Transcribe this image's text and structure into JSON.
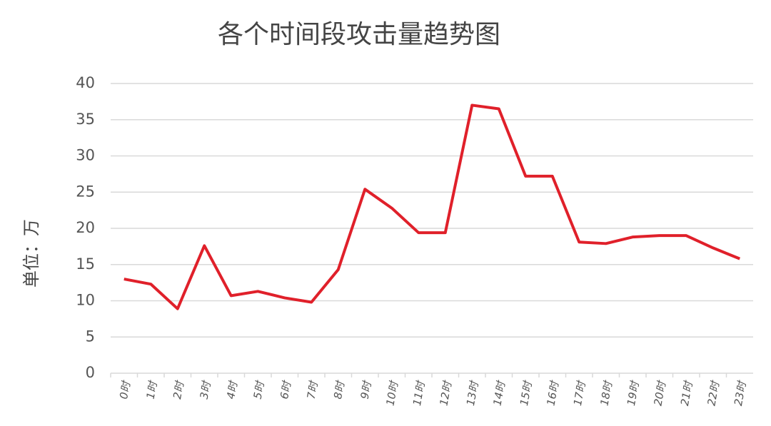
{
  "chart_data": {
    "type": "line",
    "title": "各个时间段攻击量趋势图",
    "y_label": "单位：万",
    "categories": [
      "0时",
      "1时",
      "2时",
      "3时",
      "4时",
      "5时",
      "6时",
      "7时",
      "8时",
      "9时",
      "10时",
      "11时",
      "12时",
      "13时",
      "14时",
      "15时",
      "16时",
      "17时",
      "18时",
      "19时",
      "20时",
      "21时",
      "22时",
      "23时"
    ],
    "series": [
      {
        "name": "攻击量",
        "color": "#e0202a",
        "values": [
          13.0,
          12.3,
          8.9,
          17.6,
          10.7,
          11.3,
          10.4,
          9.8,
          14.3,
          25.4,
          22.8,
          19.4,
          19.4,
          37.0,
          36.5,
          27.2,
          27.2,
          18.1,
          17.9,
          18.8,
          19.0,
          19.0,
          17.3,
          15.8
        ]
      }
    ],
    "ylim": [
      0,
      40
    ],
    "yticks": [
      0,
      5,
      10,
      15,
      20,
      25,
      30,
      35,
      40
    ],
    "grid": true
  }
}
